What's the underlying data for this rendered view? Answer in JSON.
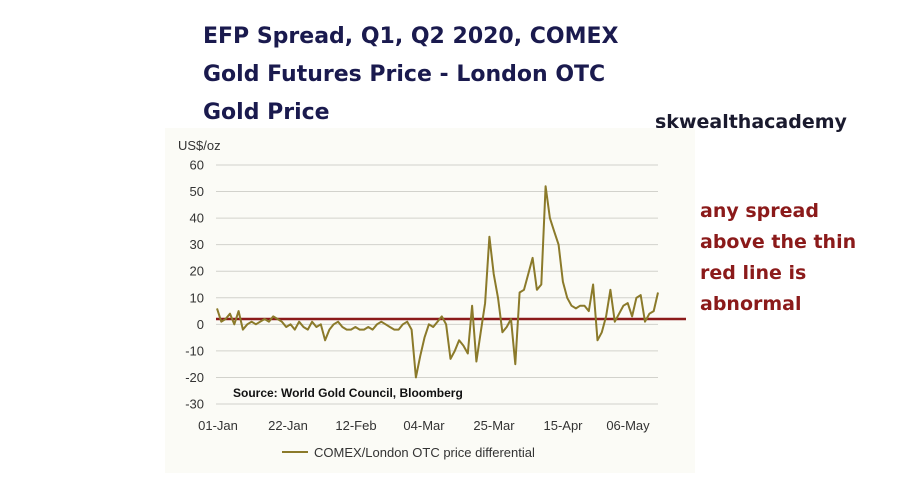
{
  "title_lines": [
    "EFP Spread, Q1, Q2 2020, COMEX",
    "Gold Futures Price - London OTC",
    "Gold Price"
  ],
  "brand": "skwealthacademy",
  "note_lines": [
    "any spread",
    "above the thin",
    "red line is",
    "abnormal"
  ],
  "colors": {
    "series": "#8b7a2a",
    "threshold": "#8b1a1a",
    "title": "#1a1a4e",
    "note": "#8b1a1a"
  },
  "chart_data": {
    "type": "line",
    "ylabel": "US$/oz",
    "ylim": [
      -30,
      60
    ],
    "yticks": [
      60,
      50,
      40,
      30,
      20,
      10,
      0,
      -10,
      -20,
      -30
    ],
    "xticks": [
      "01-Jan",
      "22-Jan",
      "12-Feb",
      "04-Mar",
      "25-Mar",
      "15-Apr",
      "06-May"
    ],
    "source": "Source: World Gold Council, Bloomberg",
    "legend": "COMEX/London OTC price differential",
    "threshold": 2,
    "series": [
      {
        "name": "COMEX/London OTC price differential",
        "values": [
          6,
          1,
          2,
          4,
          0,
          5,
          -2,
          0,
          1,
          0,
          1,
          2,
          1,
          3,
          2,
          1,
          -1,
          0,
          -2,
          1,
          -1,
          -2,
          1,
          -1,
          0,
          -6,
          -2,
          0,
          1,
          -1,
          -2,
          -2,
          -1,
          -2,
          -2,
          -1,
          -2,
          0,
          1,
          0,
          -1,
          -2,
          -2,
          0,
          1,
          -2,
          -20,
          -12,
          -5,
          0,
          -1,
          1,
          3,
          0,
          -13,
          -10,
          -6,
          -8,
          -11,
          7,
          -14,
          -3,
          8,
          33,
          19,
          10,
          -3,
          -1,
          2,
          -15,
          12,
          13,
          19,
          25,
          13,
          15,
          52,
          40,
          35,
          30,
          16,
          10,
          7,
          6,
          7,
          7,
          5,
          15,
          -6,
          -3,
          3,
          13,
          1,
          4,
          7,
          8,
          3,
          10,
          11,
          1,
          4,
          5,
          12
        ]
      }
    ]
  }
}
